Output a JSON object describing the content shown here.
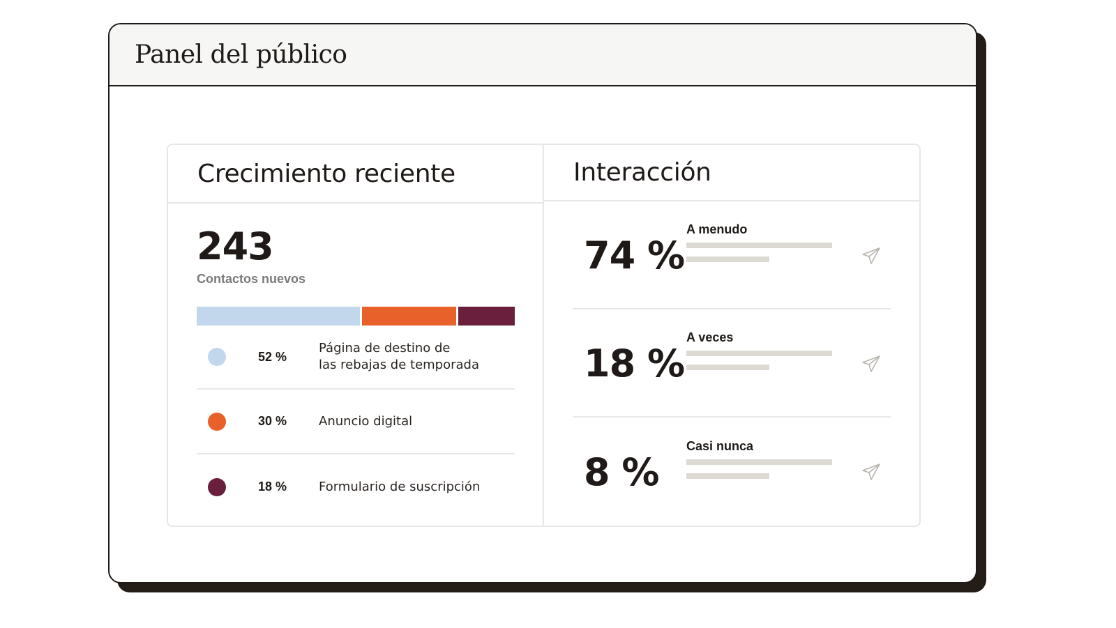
{
  "window": {
    "title": "Panel del público"
  },
  "growth": {
    "title": "Crecimiento reciente",
    "count": "243",
    "count_label": "Contactos nuevos",
    "segments": [
      {
        "percent": 52,
        "pct_label": "52 %",
        "label": "Página de destino de\nlas rebajas de temporada",
        "color": "#c2d6ec"
      },
      {
        "percent": 30,
        "pct_label": "30 %",
        "label": "Anuncio digital",
        "color": "#e8602a"
      },
      {
        "percent": 18,
        "pct_label": "18 %",
        "label": "Formulario de suscripción",
        "color": "#6a1f3d"
      }
    ]
  },
  "engagement": {
    "title": "Interacción",
    "rows": [
      {
        "pct": "74 %",
        "label": "A menudo",
        "icon": "send-icon"
      },
      {
        "pct": "18 %",
        "label": "A veces",
        "icon": "send-icon"
      },
      {
        "pct": "8 %",
        "label": "Casi nunca",
        "icon": "send-icon"
      }
    ]
  },
  "colors": {
    "skeleton": "#ddd9d3",
    "border": "#e7e7e7",
    "ink": "#1f1a17"
  }
}
